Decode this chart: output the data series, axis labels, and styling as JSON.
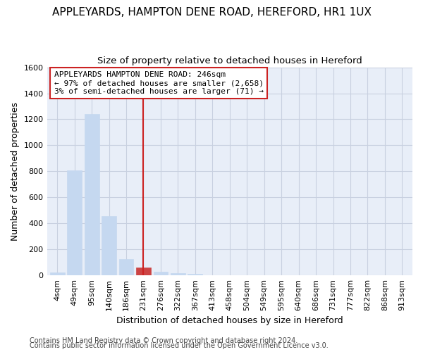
{
  "title": "APPLEYARDS, HAMPTON DENE ROAD, HEREFORD, HR1 1UX",
  "subtitle": "Size of property relative to detached houses in Hereford",
  "xlabel": "Distribution of detached houses by size in Hereford",
  "ylabel": "Number of detached properties",
  "bar_labels": [
    "4sqm",
    "49sqm",
    "95sqm",
    "140sqm",
    "186sqm",
    "231sqm",
    "276sqm",
    "322sqm",
    "367sqm",
    "413sqm",
    "458sqm",
    "504sqm",
    "549sqm",
    "595sqm",
    "640sqm",
    "686sqm",
    "731sqm",
    "777sqm",
    "822sqm",
    "868sqm",
    "913sqm"
  ],
  "bar_values": [
    25,
    805,
    1240,
    455,
    125,
    60,
    27,
    18,
    12,
    0,
    0,
    0,
    0,
    0,
    0,
    0,
    0,
    0,
    0,
    0,
    0
  ],
  "bar_color": "#c5d8f0",
  "bar_edge_color": "#c5d8f0",
  "highlight_bar_index": 5,
  "highlight_bar_color": "#cc4444",
  "highlight_bar_edge_color": "#cc4444",
  "vline_x": 5,
  "vline_color": "#cc2222",
  "ylim": [
    0,
    1600
  ],
  "yticks": [
    0,
    200,
    400,
    600,
    800,
    1000,
    1200,
    1400,
    1600
  ],
  "annotation_text": "APPLEYARDS HAMPTON DENE ROAD: 246sqm\n← 97% of detached houses are smaller (2,658)\n3% of semi-detached houses are larger (71) →",
  "footer_line1": "Contains HM Land Registry data © Crown copyright and database right 2024.",
  "footer_line2": "Contains public sector information licensed under the Open Government Licence v3.0.",
  "bg_color": "#ffffff",
  "plot_bg_color": "#e8eef8",
  "grid_color": "#c8d0e0",
  "title_fontsize": 11,
  "subtitle_fontsize": 9.5,
  "axis_label_fontsize": 9,
  "tick_fontsize": 8,
  "footer_fontsize": 7
}
